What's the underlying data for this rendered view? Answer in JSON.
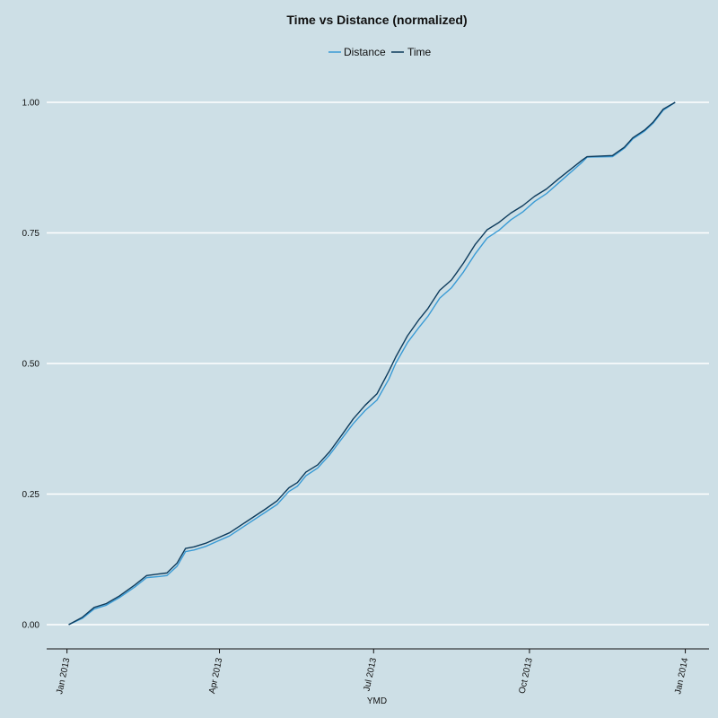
{
  "chart_data": {
    "type": "line",
    "title": "Time vs Distance (normalized)",
    "xlabel": "YMD",
    "ylabel": "",
    "x_ticks": [
      {
        "date": "2013-01-01",
        "label": "Jan 2013"
      },
      {
        "date": "2013-04-01",
        "label": "Apr 2013"
      },
      {
        "date": "2013-07-01",
        "label": "Jul 2013"
      },
      {
        "date": "2013-10-01",
        "label": "Oct 2013"
      },
      {
        "date": "2014-01-01",
        "label": "Jan 2014"
      }
    ],
    "y_ticks": [
      "0.00",
      "0.25",
      "0.50",
      "0.75",
      "1.00"
    ],
    "xlim": [
      "2012-12-20",
      "2014-01-15"
    ],
    "ylim": [
      -0.045,
      1.0
    ],
    "grid": "horizontal",
    "legend_position": "top",
    "series": [
      {
        "name": "Distance",
        "color": "#3a9bd5",
        "points": [
          [
            "2013-01-02",
            0.0
          ],
          [
            "2013-01-10",
            0.012
          ],
          [
            "2013-01-17",
            0.03
          ],
          [
            "2013-01-24",
            0.037
          ],
          [
            "2013-02-01",
            0.052
          ],
          [
            "2013-02-10",
            0.072
          ],
          [
            "2013-02-17",
            0.09
          ],
          [
            "2013-02-24",
            0.092
          ],
          [
            "2013-03-01",
            0.094
          ],
          [
            "2013-03-07",
            0.112
          ],
          [
            "2013-03-12",
            0.14
          ],
          [
            "2013-03-17",
            0.143
          ],
          [
            "2013-03-24",
            0.15
          ],
          [
            "2013-03-31",
            0.16
          ],
          [
            "2013-04-07",
            0.17
          ],
          [
            "2013-04-14",
            0.185
          ],
          [
            "2013-04-21",
            0.2
          ],
          [
            "2013-04-28",
            0.215
          ],
          [
            "2013-05-05",
            0.23
          ],
          [
            "2013-05-12",
            0.255
          ],
          [
            "2013-05-17",
            0.265
          ],
          [
            "2013-05-22",
            0.285
          ],
          [
            "2013-05-29",
            0.3
          ],
          [
            "2013-06-05",
            0.325
          ],
          [
            "2013-06-12",
            0.355
          ],
          [
            "2013-06-19",
            0.385
          ],
          [
            "2013-06-26",
            0.41
          ],
          [
            "2013-07-03",
            0.43
          ],
          [
            "2013-07-10",
            0.47
          ],
          [
            "2013-07-14",
            0.5
          ],
          [
            "2013-07-21",
            0.54
          ],
          [
            "2013-07-28",
            0.57
          ],
          [
            "2013-08-02",
            0.59
          ],
          [
            "2013-08-09",
            0.625
          ],
          [
            "2013-08-16",
            0.645
          ],
          [
            "2013-08-23",
            0.675
          ],
          [
            "2013-08-30",
            0.71
          ],
          [
            "2013-09-06",
            0.74
          ],
          [
            "2013-09-13",
            0.755
          ],
          [
            "2013-09-20",
            0.775
          ],
          [
            "2013-09-27",
            0.79
          ],
          [
            "2013-10-04",
            0.81
          ],
          [
            "2013-10-11",
            0.825
          ],
          [
            "2013-10-18",
            0.845
          ],
          [
            "2013-10-25",
            0.865
          ],
          [
            "2013-11-01",
            0.885
          ],
          [
            "2013-11-04",
            0.895
          ],
          [
            "2013-11-19",
            0.896
          ],
          [
            "2013-11-26",
            0.912
          ],
          [
            "2013-12-01",
            0.93
          ],
          [
            "2013-12-08",
            0.945
          ],
          [
            "2013-12-13",
            0.96
          ],
          [
            "2013-12-19",
            0.985
          ],
          [
            "2013-12-26",
            1.0
          ]
        ]
      },
      {
        "name": "Time",
        "color": "#0d3b5c",
        "points": [
          [
            "2013-01-02",
            0.0
          ],
          [
            "2013-01-10",
            0.014
          ],
          [
            "2013-01-17",
            0.033
          ],
          [
            "2013-01-24",
            0.04
          ],
          [
            "2013-02-01",
            0.055
          ],
          [
            "2013-02-10",
            0.076
          ],
          [
            "2013-02-17",
            0.094
          ],
          [
            "2013-02-24",
            0.097
          ],
          [
            "2013-03-01",
            0.099
          ],
          [
            "2013-03-07",
            0.118
          ],
          [
            "2013-03-12",
            0.146
          ],
          [
            "2013-03-17",
            0.149
          ],
          [
            "2013-03-24",
            0.156
          ],
          [
            "2013-03-31",
            0.166
          ],
          [
            "2013-04-07",
            0.176
          ],
          [
            "2013-04-14",
            0.191
          ],
          [
            "2013-04-21",
            0.206
          ],
          [
            "2013-04-28",
            0.221
          ],
          [
            "2013-05-05",
            0.237
          ],
          [
            "2013-05-12",
            0.262
          ],
          [
            "2013-05-17",
            0.272
          ],
          [
            "2013-05-22",
            0.292
          ],
          [
            "2013-05-29",
            0.306
          ],
          [
            "2013-06-05",
            0.331
          ],
          [
            "2013-06-12",
            0.362
          ],
          [
            "2013-06-19",
            0.394
          ],
          [
            "2013-06-26",
            0.42
          ],
          [
            "2013-07-03",
            0.442
          ],
          [
            "2013-07-10",
            0.485
          ],
          [
            "2013-07-14",
            0.512
          ],
          [
            "2013-07-21",
            0.553
          ],
          [
            "2013-07-28",
            0.585
          ],
          [
            "2013-08-02",
            0.605
          ],
          [
            "2013-08-09",
            0.64
          ],
          [
            "2013-08-16",
            0.66
          ],
          [
            "2013-08-23",
            0.692
          ],
          [
            "2013-08-30",
            0.728
          ],
          [
            "2013-09-06",
            0.756
          ],
          [
            "2013-09-13",
            0.77
          ],
          [
            "2013-09-20",
            0.788
          ],
          [
            "2013-09-27",
            0.802
          ],
          [
            "2013-10-04",
            0.82
          ],
          [
            "2013-10-11",
            0.834
          ],
          [
            "2013-10-18",
            0.853
          ],
          [
            "2013-10-25",
            0.871
          ],
          [
            "2013-11-01",
            0.889
          ],
          [
            "2013-11-04",
            0.896
          ],
          [
            "2013-11-19",
            0.898
          ],
          [
            "2013-11-26",
            0.914
          ],
          [
            "2013-12-01",
            0.932
          ],
          [
            "2013-12-08",
            0.947
          ],
          [
            "2013-12-13",
            0.962
          ],
          [
            "2013-12-19",
            0.987
          ],
          [
            "2013-12-26",
            1.0
          ]
        ]
      }
    ]
  }
}
